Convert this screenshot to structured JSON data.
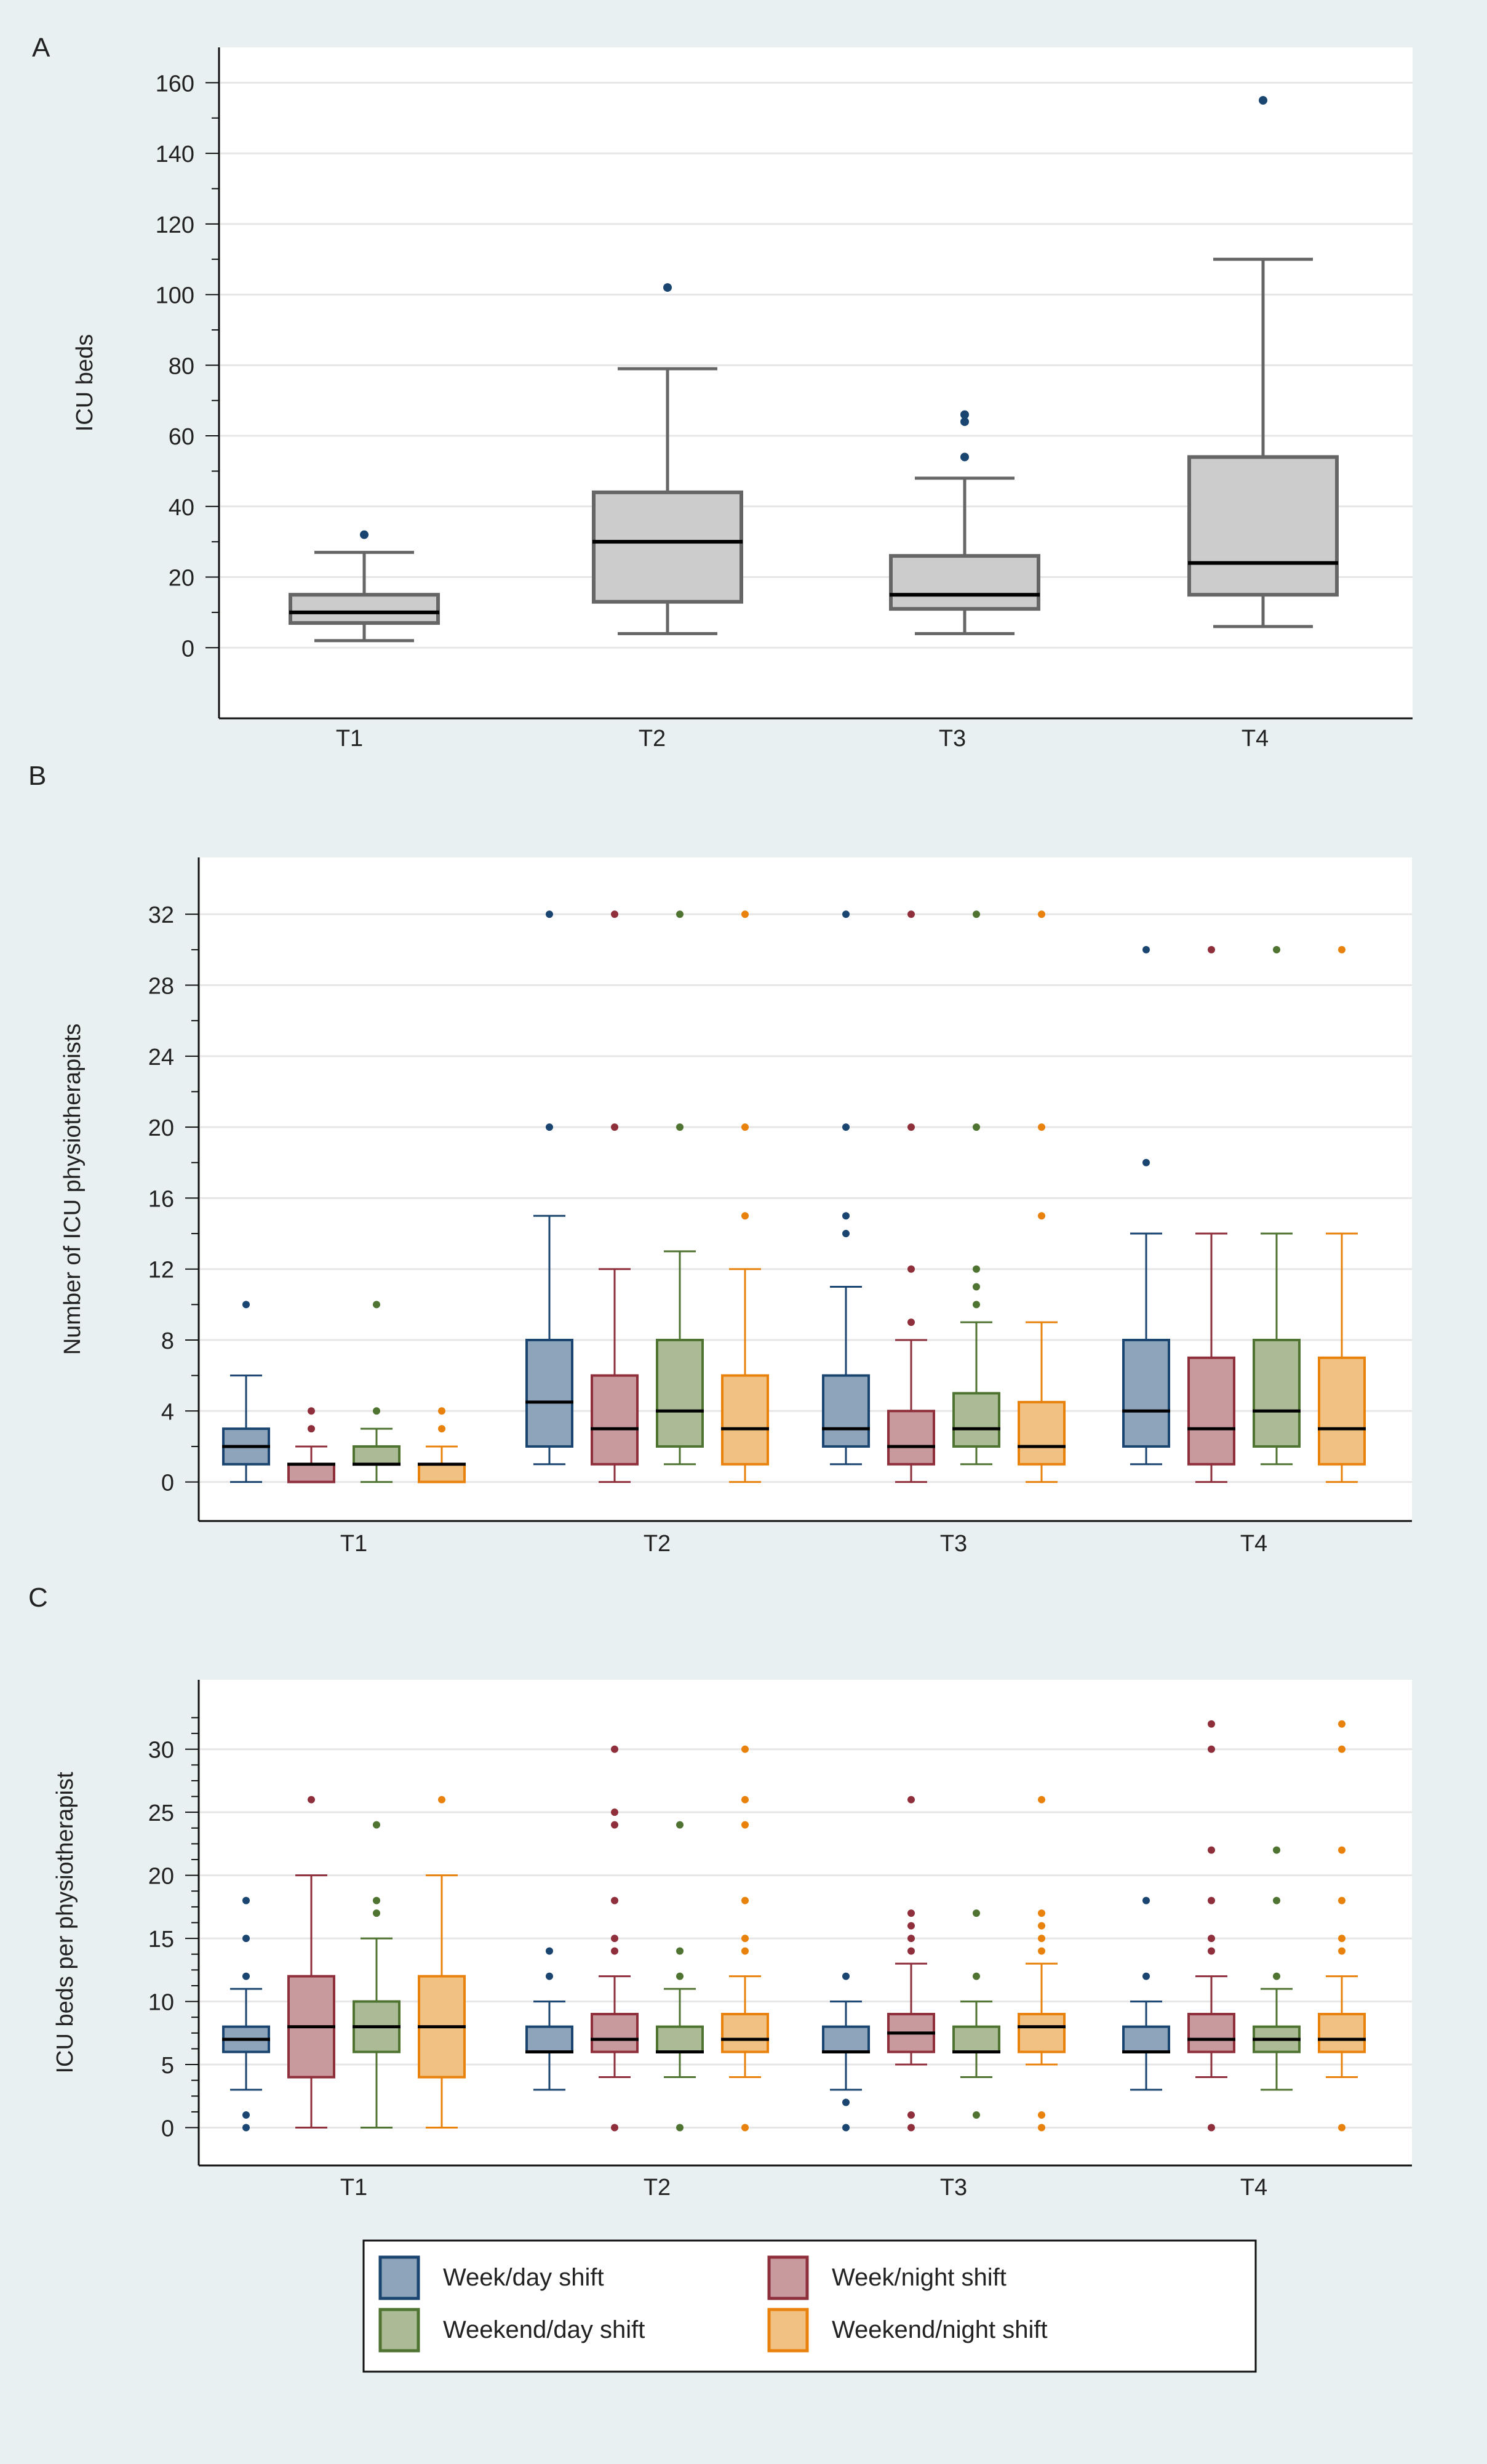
{
  "figure": {
    "background": "#e9f0f2",
    "legend": {
      "items": [
        {
          "label": "Week/day shift",
          "stroke": "#1b4571",
          "fill": "#8da4bb"
        },
        {
          "label": "Week/night shift",
          "stroke": "#8f2f3b",
          "fill": "#c89a9e"
        },
        {
          "label": "Weekend/day shift",
          "stroke": "#4f7330",
          "fill": "#aabb96"
        },
        {
          "label": "Weekend/night shift",
          "stroke": "#e8820c",
          "fill": "#f1c083"
        }
      ]
    }
  },
  "chart_data": [
    {
      "panel": "A",
      "type": "box",
      "title": "",
      "xlabel": "",
      "ylabel": "ICU beds",
      "categories": [
        "T1",
        "T2",
        "T3",
        "T4"
      ],
      "ylim": [
        -20,
        170
      ],
      "yticks": [
        0,
        20,
        40,
        60,
        80,
        100,
        120,
        140,
        160
      ],
      "yminor": [
        10,
        30,
        50,
        70,
        90,
        110,
        130,
        150
      ],
      "grid": true,
      "legend": "none",
      "series": [
        {
          "name": "ICU beds",
          "stroke": "#666666",
          "fill": "#cccccc",
          "outlier_color": "#1b4571",
          "boxes": [
            {
              "min": 2,
              "q1": 7,
              "median": 10,
              "q3": 15,
              "max": 27,
              "outliers": [
                32
              ]
            },
            {
              "min": 4,
              "q1": 13,
              "median": 30,
              "q3": 44,
              "max": 79,
              "outliers": [
                102
              ]
            },
            {
              "min": 4,
              "q1": 11,
              "median": 15,
              "q3": 26,
              "max": 48,
              "outliers": [
                54,
                64,
                66
              ]
            },
            {
              "min": 6,
              "q1": 15,
              "median": 24,
              "q3": 54,
              "max": 110,
              "outliers": [
                155
              ]
            }
          ]
        }
      ]
    },
    {
      "panel": "B",
      "type": "box",
      "title": "",
      "xlabel": "",
      "ylabel": "Number of ICU physiotherapists",
      "categories": [
        "T1",
        "T2",
        "T3",
        "T4"
      ],
      "ylim": [
        -2.2,
        35.2
      ],
      "yticks": [
        0,
        4,
        8,
        12,
        16,
        20,
        24,
        28,
        32
      ],
      "yminor": [
        2,
        6,
        10,
        14,
        18,
        22,
        26,
        30
      ],
      "grid": true,
      "legend": "bottom",
      "series": [
        {
          "name": "Week/day shift",
          "boxes": [
            {
              "min": 0,
              "q1": 1,
              "median": 2,
              "q3": 3,
              "max": 6,
              "outliers": [
                10
              ]
            },
            {
              "min": 1,
              "q1": 2,
              "median": 4.5,
              "q3": 8,
              "max": 15,
              "outliers": [
                20,
                32
              ]
            },
            {
              "min": 1,
              "q1": 2,
              "median": 3,
              "q3": 6,
              "max": 11,
              "outliers": [
                14,
                15,
                20,
                32
              ]
            },
            {
              "min": 1,
              "q1": 2,
              "median": 4,
              "q3": 8,
              "max": 14,
              "outliers": [
                18,
                30
              ]
            }
          ]
        },
        {
          "name": "Week/night shift",
          "boxes": [
            {
              "min": 0,
              "q1": 0,
              "median": 1,
              "q3": 1,
              "max": 2,
              "outliers": [
                3,
                4
              ]
            },
            {
              "min": 0,
              "q1": 1,
              "median": 3,
              "q3": 6,
              "max": 12,
              "outliers": [
                20,
                32
              ]
            },
            {
              "min": 0,
              "q1": 1,
              "median": 2,
              "q3": 4,
              "max": 8,
              "outliers": [
                9,
                12,
                20,
                32
              ]
            },
            {
              "min": 0,
              "q1": 1,
              "median": 3,
              "q3": 7,
              "max": 14,
              "outliers": [
                30
              ]
            }
          ]
        },
        {
          "name": "Weekend/day shift",
          "boxes": [
            {
              "min": 0,
              "q1": 1,
              "median": 1,
              "q3": 2,
              "max": 3,
              "outliers": [
                4,
                10
              ]
            },
            {
              "min": 1,
              "q1": 2,
              "median": 4,
              "q3": 8,
              "max": 13,
              "outliers": [
                20,
                32
              ]
            },
            {
              "min": 1,
              "q1": 2,
              "median": 3,
              "q3": 5,
              "max": 9,
              "outliers": [
                10,
                11,
                12,
                20,
                32
              ]
            },
            {
              "min": 1,
              "q1": 2,
              "median": 4,
              "q3": 8,
              "max": 14,
              "outliers": [
                30
              ]
            }
          ]
        },
        {
          "name": "Weekend/night shift",
          "boxes": [
            {
              "min": 0,
              "q1": 0,
              "median": 1,
              "q3": 1,
              "max": 2,
              "outliers": [
                3,
                4
              ]
            },
            {
              "min": 0,
              "q1": 1,
              "median": 3,
              "q3": 6,
              "max": 12,
              "outliers": [
                15,
                20,
                32
              ]
            },
            {
              "min": 0,
              "q1": 1,
              "median": 2,
              "q3": 4.5,
              "max": 9,
              "outliers": [
                15,
                20,
                32
              ]
            },
            {
              "min": 0,
              "q1": 1,
              "median": 3,
              "q3": 7,
              "max": 14,
              "outliers": [
                30
              ]
            }
          ]
        }
      ]
    },
    {
      "panel": "C",
      "type": "box",
      "title": "",
      "xlabel": "",
      "ylabel": "ICU beds per physiotherapist",
      "categories": [
        "T1",
        "T2",
        "T3",
        "T4"
      ],
      "ylim": [
        -3,
        35.5
      ],
      "yticks": [
        0,
        5,
        10,
        15,
        20,
        25,
        30
      ],
      "yminor": [
        1.25,
        2.5,
        3.75,
        6.25,
        7.5,
        8.75,
        11.25,
        12.5,
        13.75,
        16.25,
        17.5,
        18.75,
        21.25,
        22.5,
        23.75,
        26.25,
        27.5,
        28.75,
        31.25,
        32.5
      ],
      "grid": true,
      "legend": "bottom",
      "series": [
        {
          "name": "Week/day shift",
          "boxes": [
            {
              "min": 3,
              "q1": 6,
              "median": 7,
              "q3": 8,
              "max": 11,
              "outliers": [
                0,
                1,
                12,
                15,
                18
              ]
            },
            {
              "min": 3,
              "q1": 6,
              "median": 6,
              "q3": 8,
              "max": 10,
              "outliers": [
                12,
                14
              ]
            },
            {
              "min": 3,
              "q1": 6,
              "median": 6,
              "q3": 8,
              "max": 10,
              "outliers": [
                0,
                2,
                12
              ]
            },
            {
              "min": 3,
              "q1": 6,
              "median": 6,
              "q3": 8,
              "max": 10,
              "outliers": [
                12,
                18
              ]
            }
          ]
        },
        {
          "name": "Week/night shift",
          "boxes": [
            {
              "min": 0,
              "q1": 4,
              "median": 8,
              "q3": 12,
              "max": 20,
              "outliers": [
                26
              ]
            },
            {
              "min": 4,
              "q1": 6,
              "median": 7,
              "q3": 9,
              "max": 12,
              "outliers": [
                0,
                14,
                15,
                18,
                24,
                25,
                30
              ]
            },
            {
              "min": 5,
              "q1": 6,
              "median": 7.5,
              "q3": 9,
              "max": 13,
              "outliers": [
                0,
                1,
                14,
                15,
                16,
                17,
                26
              ]
            },
            {
              "min": 4,
              "q1": 6,
              "median": 7,
              "q3": 9,
              "max": 12,
              "outliers": [
                0,
                14,
                15,
                18,
                22,
                30,
                32
              ]
            }
          ]
        },
        {
          "name": "Weekend/day shift",
          "boxes": [
            {
              "min": 0,
              "q1": 6,
              "median": 8,
              "q3": 10,
              "max": 15,
              "outliers": [
                17,
                18,
                24
              ]
            },
            {
              "min": 4,
              "q1": 6,
              "median": 6,
              "q3": 8,
              "max": 11,
              "outliers": [
                0,
                12,
                14,
                24
              ]
            },
            {
              "min": 4,
              "q1": 6,
              "median": 6,
              "q3": 8,
              "max": 10,
              "outliers": [
                1,
                12,
                17
              ]
            },
            {
              "min": 3,
              "q1": 6,
              "median": 7,
              "q3": 8,
              "max": 11,
              "outliers": [
                12,
                18,
                22
              ]
            }
          ]
        },
        {
          "name": "Weekend/night shift",
          "boxes": [
            {
              "min": 0,
              "q1": 4,
              "median": 8,
              "q3": 12,
              "max": 20,
              "outliers": [
                26
              ]
            },
            {
              "min": 4,
              "q1": 6,
              "median": 7,
              "q3": 9,
              "max": 12,
              "outliers": [
                0,
                14,
                15,
                18,
                24,
                26,
                30
              ]
            },
            {
              "min": 5,
              "q1": 6,
              "median": 8,
              "q3": 9,
              "max": 13,
              "outliers": [
                0,
                1,
                14,
                15,
                16,
                17,
                26
              ]
            },
            {
              "min": 4,
              "q1": 6,
              "median": 7,
              "q3": 9,
              "max": 12,
              "outliers": [
                0,
                14,
                15,
                18,
                22,
                30,
                32
              ]
            }
          ]
        }
      ]
    }
  ]
}
